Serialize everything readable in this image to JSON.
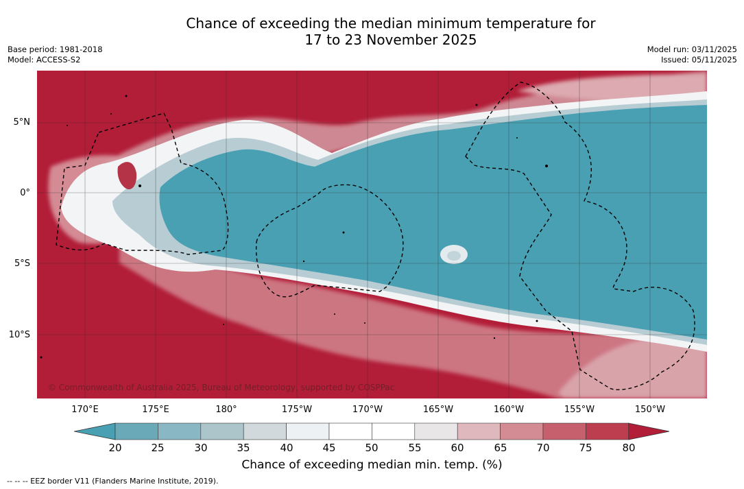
{
  "title": {
    "line1": "Chance of exceeding the median minimum temperature for",
    "line2": "17 to 23 November 2025"
  },
  "meta": {
    "base_period": "Base period: 1981-2018",
    "model": "Model: ACCESS-S2",
    "model_run": "Model run: 03/11/2025",
    "issued": "Issued: 05/11/2025"
  },
  "map": {
    "lat_labels": [
      "5°N",
      "0°",
      "5°S",
      "10°S"
    ],
    "lon_labels": [
      "170°E",
      "175°E",
      "180°",
      "175°W",
      "170°W",
      "165°W",
      "160°W",
      "155°W",
      "150°W"
    ],
    "copyright": "© Commonwealth of Australia 2025, Bureau of Meteorology, supported by COSPPac",
    "colors": {
      "high": "#b21d38",
      "low": "#4aa0b3",
      "neutral": "#ffffff"
    }
  },
  "colorbar": {
    "ticks": [
      "20",
      "25",
      "30",
      "35",
      "40",
      "45",
      "50",
      "55",
      "60",
      "65",
      "70",
      "75",
      "80"
    ],
    "colors": [
      "#4aa0b3",
      "#6aa9b8",
      "#89b8c4",
      "#abc5cb",
      "#d1d9dc",
      "#eef1f3",
      "#ffffff",
      "#ffffff",
      "#e9e6e7",
      "#dfb8be",
      "#d38c94",
      "#c6606d",
      "#bd3e4e",
      "#b21d38"
    ],
    "label": "Chance of exceeding median min. temp. (%)"
  },
  "legend_note": "--  --  -- EEZ border V11 (Flanders Marine Institute, 2019)."
}
